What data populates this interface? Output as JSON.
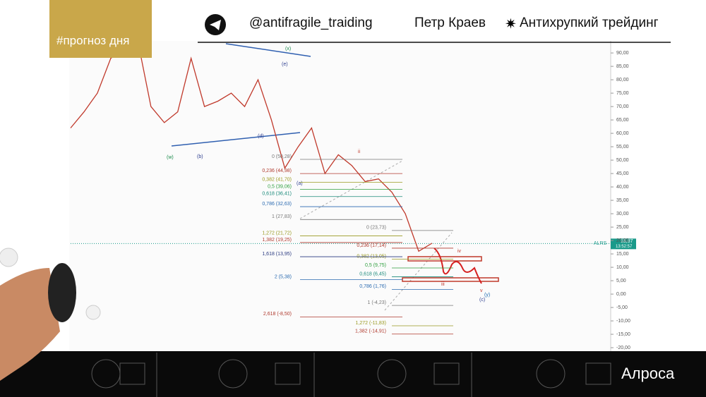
{
  "header": {
    "tag": "#прогноз дня",
    "channel": "@antifragile_traiding",
    "author": "Петр Краев",
    "project": "Антихрупкий трейдинг"
  },
  "footer": {
    "company": "Алроса"
  },
  "chart_data": {
    "type": "line",
    "ticker": "ALRS",
    "last_price": {
      "value": 18.87,
      "label": "18,87"
    },
    "timer": "13:52:57",
    "categories": [
      null,
      null,
      null,
      null,
      null,
      null,
      null,
      null,
      null,
      null,
      null,
      null,
      null,
      null,
      null,
      null,
      null,
      null,
      null,
      null,
      null,
      null,
      null,
      null,
      null,
      null,
      null,
      null
    ],
    "series": [
      {
        "color": "#c0392b",
        "values": [
          62,
          68,
          75,
          88,
          92,
          95,
          70,
          64,
          68,
          88,
          70,
          72,
          75,
          70,
          80,
          65,
          47,
          55,
          62,
          45,
          52,
          48,
          42,
          43,
          38,
          30,
          16,
          19
        ]
      }
    ],
    "ylim": [
      -21.3,
      94.5
    ],
    "yticks": [
      {
        "value": 90,
        "label": "90,00"
      },
      {
        "value": 85,
        "label": "85,00"
      },
      {
        "value": 80,
        "label": "80,00"
      },
      {
        "value": 75,
        "label": "75,00"
      },
      {
        "value": 70,
        "label": "70,00"
      },
      {
        "value": 65,
        "label": "65,00"
      },
      {
        "value": 60,
        "label": "60,00"
      },
      {
        "value": 55,
        "label": "55,00"
      },
      {
        "value": 50,
        "label": "50,00"
      },
      {
        "value": 45,
        "label": "45,00"
      },
      {
        "value": 40,
        "label": "40,00"
      },
      {
        "value": 35,
        "label": "35,00"
      },
      {
        "value": 30,
        "label": "30,00"
      },
      {
        "value": 25,
        "label": "25,00"
      },
      {
        "value": 20,
        "label": "20,00"
      },
      {
        "value": 15,
        "label": "15,00"
      },
      {
        "value": 10,
        "label": "10,00"
      },
      {
        "value": 5,
        "label": "5,00"
      },
      {
        "value": 0,
        "label": "0,00"
      },
      {
        "value": -5,
        "label": "-5,00"
      },
      {
        "value": -10,
        "label": "-10,00"
      },
      {
        "value": -15,
        "label": "-15,00"
      },
      {
        "value": -20,
        "label": "-20,00"
      }
    ],
    "fib_left": [
      {
        "value": 50.28,
        "label": "0 (50,28)",
        "color": "#777777"
      },
      {
        "value": 44.98,
        "label": "0,236 (44,98)",
        "color": "#b03a2e"
      },
      {
        "value": 41.7,
        "label": "0,382 (41,70)",
        "color": "#9a9a20"
      },
      {
        "value": 39.06,
        "label": "0,5 (39,06)",
        "color": "#2e9e3e"
      },
      {
        "value": 36.41,
        "label": "0,618 (36,41)",
        "color": "#1a8a7a"
      },
      {
        "value": 32.63,
        "label": "0,786 (32,63)",
        "color": "#2a6ab0"
      },
      {
        "value": 27.83,
        "label": "1 (27,83)",
        "color": "#777777"
      },
      {
        "value": 21.72,
        "label": "1,272 (21,72)",
        "color": "#9a9a20"
      },
      {
        "value": 19.25,
        "label": "1,382 (19,25)",
        "color": "#b03a2e"
      },
      {
        "value": 13.95,
        "label": "1,618 (13,95)",
        "color": "#2a3a80"
      },
      {
        "value": 5.38,
        "label": "2 (5,38)",
        "color": "#2a6ab0"
      },
      {
        "value": -8.5,
        "label": "2,618 (-8,50)",
        "color": "#b03a2e"
      }
    ],
    "fib_right": [
      {
        "value": 23.73,
        "label": "0 (23,73)",
        "color": "#777777"
      },
      {
        "value": 17.14,
        "label": "0,236 (17,14)",
        "color": "#b03a2e"
      },
      {
        "value": 13.05,
        "label": "0,382 (13,05)",
        "color": "#9a9a20"
      },
      {
        "value": 9.75,
        "label": "0,5 (9,75)",
        "color": "#2e9e3e"
      },
      {
        "value": 6.45,
        "label": "0,618 (6,45)",
        "color": "#1a8a7a"
      },
      {
        "value": 1.76,
        "label": "0,786 (1,76)",
        "color": "#2a6ab0"
      },
      {
        "value": -4.23,
        "label": "1 (-4,23)",
        "color": "#777777"
      },
      {
        "value": -11.83,
        "label": "1,272 (-11,83)",
        "color": "#9a9a20"
      },
      {
        "value": -14.91,
        "label": "1,382 (-14,91)",
        "color": "#b03a2e"
      }
    ],
    "wave_labels": [
      "(w)",
      "(x)",
      "(y)",
      "(a)",
      "(b)",
      "(c)",
      "(d)",
      "(e)",
      "ii",
      "iii",
      "iv",
      "v"
    ]
  }
}
